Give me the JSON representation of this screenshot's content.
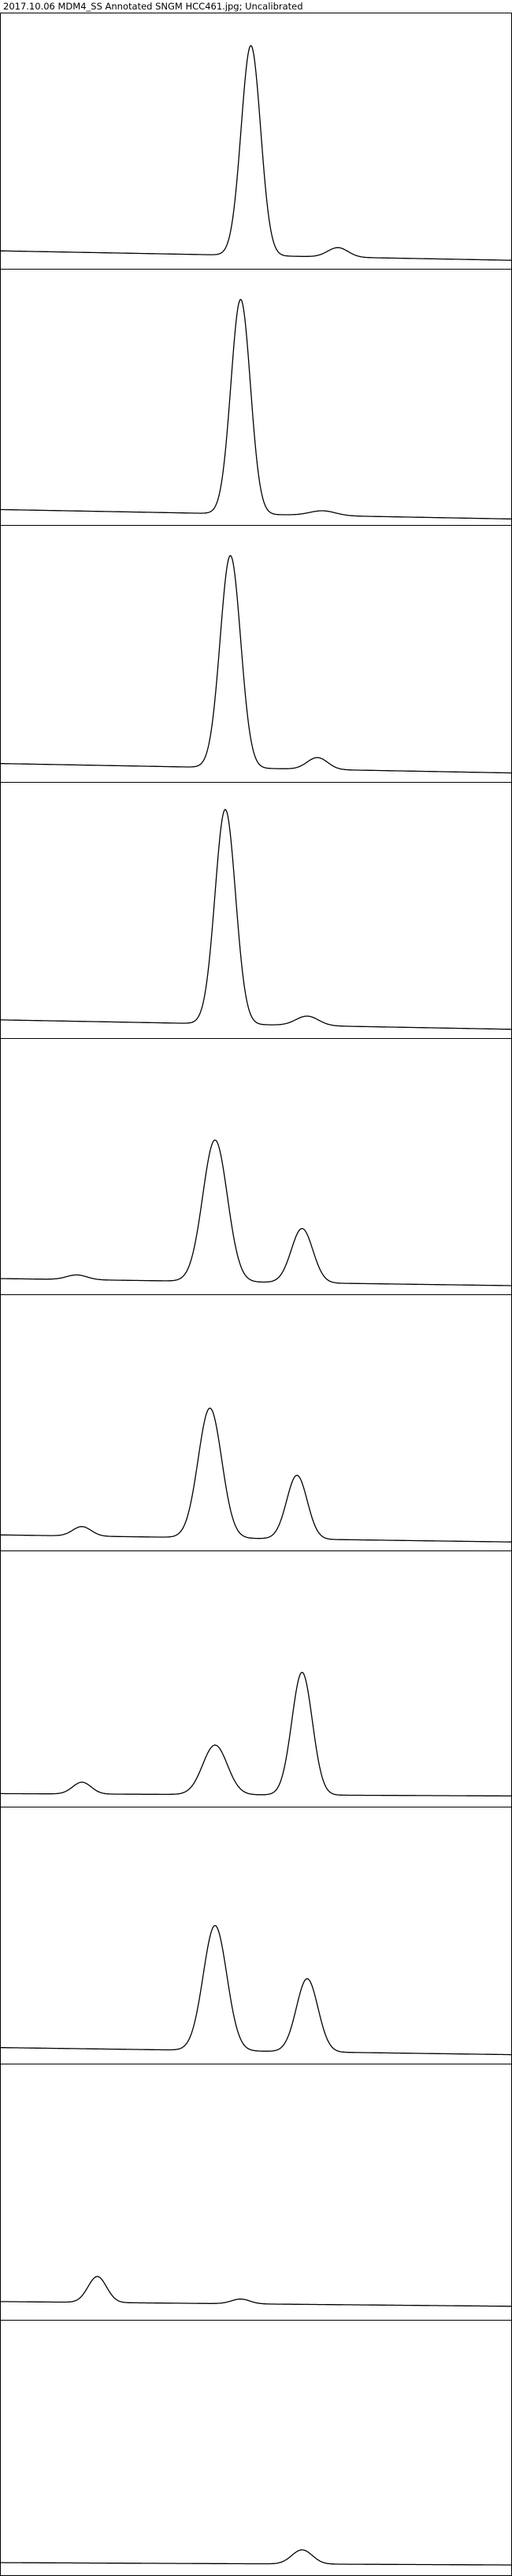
{
  "title": "2017.10.06 MDM4_SS Annotated SNGM HCC461.jpg; Uncalibrated",
  "colors": {
    "background": "#ffffff",
    "line": "#000000"
  },
  "chart_data": {
    "type": "line",
    "title": "2017.10.06 MDM4_SS Annotated SNGM HCC461.jpg; Uncalibrated",
    "xlabel": "",
    "ylabel": "",
    "xlim": [
      0,
      100
    ],
    "ylim": [
      0,
      100
    ],
    "grid": false,
    "legend": "none",
    "lanes": [
      {
        "baseline": [
          5,
          1
        ],
        "peaks": [
          [
            49,
            89,
            1.9
          ],
          [
            66,
            4,
            2.0
          ]
        ]
      },
      {
        "baseline": [
          4,
          0
        ],
        "peaks": [
          [
            47,
            91,
            1.9
          ],
          [
            63,
            2,
            2.5
          ]
        ]
      },
      {
        "baseline": [
          5,
          1
        ],
        "peaks": [
          [
            45,
            90,
            2.0
          ],
          [
            62,
            5,
            2.0
          ]
        ]
      },
      {
        "baseline": [
          5,
          1
        ],
        "peaks": [
          [
            44,
            91,
            2.0
          ],
          [
            60,
            4,
            2.2
          ]
        ]
      },
      {
        "baseline": [
          4,
          1
        ],
        "peaks": [
          [
            15,
            2,
            2.0
          ],
          [
            42,
            60,
            2.4
          ],
          [
            59,
            23,
            2.1
          ]
        ]
      },
      {
        "baseline": [
          4,
          1
        ],
        "peaks": [
          [
            16,
            4,
            1.8
          ],
          [
            41,
            55,
            2.3
          ],
          [
            58,
            27,
            2.0
          ]
        ]
      },
      {
        "baseline": [
          3,
          2
        ],
        "peaks": [
          [
            16,
            5,
            1.8
          ],
          [
            42,
            21,
            2.4
          ],
          [
            59,
            52,
            2.0
          ]
        ]
      },
      {
        "baseline": [
          4,
          1
        ],
        "peaks": [
          [
            42,
            53,
            2.3
          ],
          [
            60,
            31,
            2.1
          ]
        ]
      },
      {
        "baseline": [
          5,
          3
        ],
        "peaks": [
          [
            19,
            11,
            1.8
          ],
          [
            47,
            2,
            1.8
          ]
        ]
      },
      {
        "baseline": [
          3,
          2
        ],
        "peaks": [
          [
            59,
            6,
            2.0
          ]
        ]
      }
    ]
  }
}
